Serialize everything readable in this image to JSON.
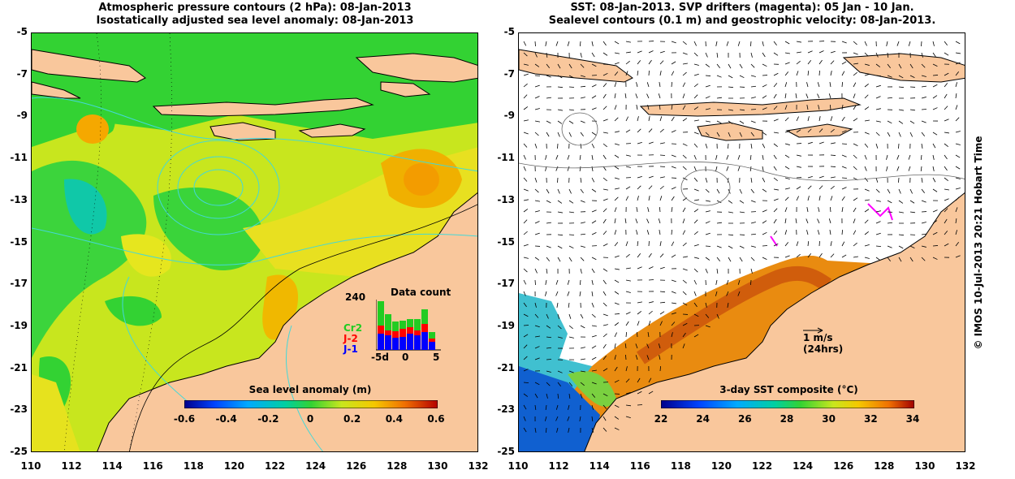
{
  "left_panel": {
    "title_line1": "Atmospheric pressure contours (2 hPa): 08-Jan-2013",
    "title_line2": "Isostatically adjusted sea level anomaly: 08-Jan-2013",
    "colorbar_label": "Sea level anomaly (m)",
    "colorbar_ticks": [
      "-0.6",
      "-0.4",
      "-0.2",
      "0",
      "0.2",
      "0.4",
      "0.6"
    ],
    "inset": {
      "title": "Data count",
      "ymax_label": "240",
      "legend": [
        {
          "label": "Cr2",
          "color": "#22cc22"
        },
        {
          "label": "J-2",
          "color": "#ff0000"
        },
        {
          "label": "J-1",
          "color": "#0000ff"
        }
      ],
      "x_ticks": [
        "-5d",
        "0",
        "5"
      ]
    }
  },
  "right_panel": {
    "title_line1": "SST: 08-Jan-2013. SVP drifters (magenta): 05 Jan - 10 Jan.",
    "title_line2": "Sealevel contours (0.1 m) and geostrophic velocity: 08-Jan-2013.",
    "colorbar_label": "3-day SST composite (°C)",
    "colorbar_ticks": [
      "22",
      "24",
      "26",
      "28",
      "30",
      "32",
      "34"
    ],
    "scale_arrow": {
      "line1": "1 m/s",
      "line2": "(24hrs)"
    }
  },
  "axes": {
    "y_ticks": [
      "-5",
      "-7",
      "-9",
      "-11",
      "-13",
      "-15",
      "-17",
      "-19",
      "-21",
      "-23",
      "-25"
    ],
    "x_ticks": [
      "110",
      "112",
      "114",
      "116",
      "118",
      "120",
      "122",
      "124",
      "126",
      "128",
      "130",
      "132"
    ]
  },
  "copyright": "© IMOS 10-Jul-2013 20:21 Hobart Time",
  "colors": {
    "land": "#f9c79c",
    "ocean_high": "#f5a800",
    "ocean_mid": "#c8e61e",
    "ocean_low": "#2fd52f"
  }
}
